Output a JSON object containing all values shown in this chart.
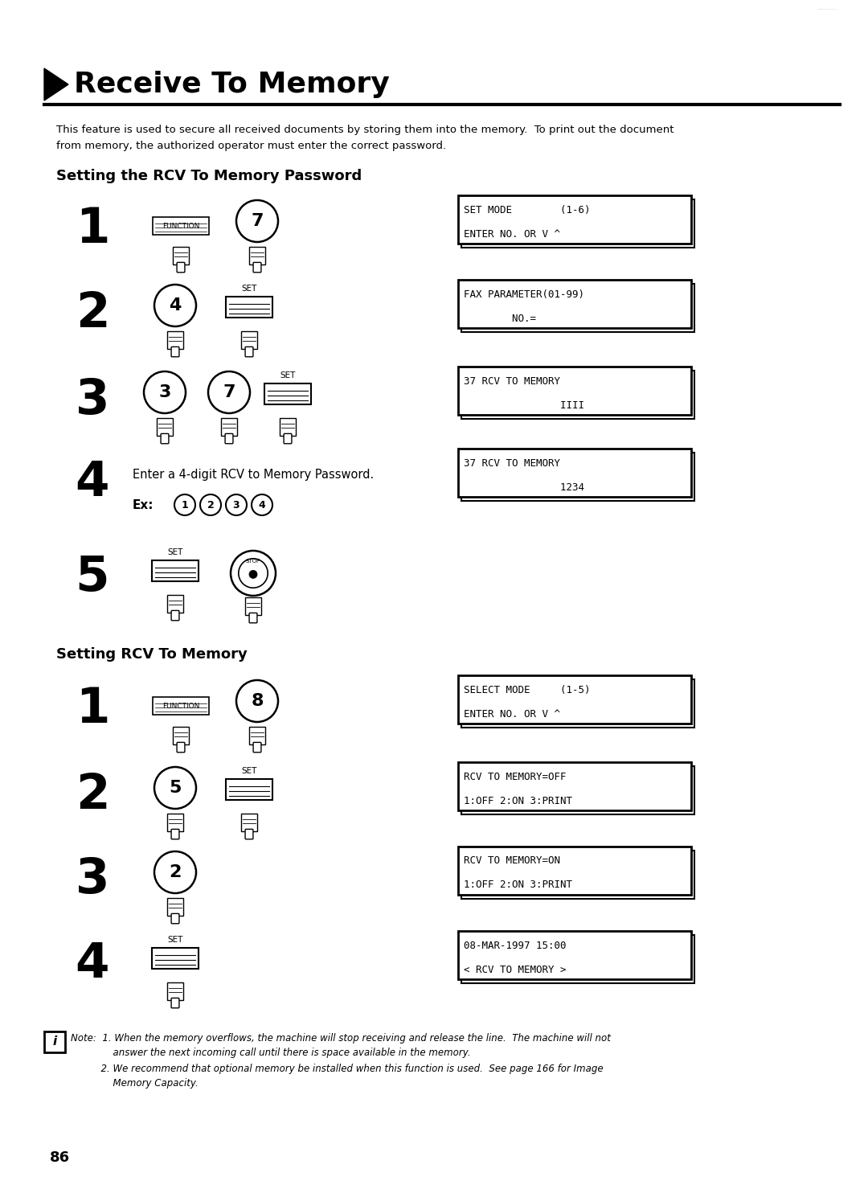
{
  "title": "Receive To Memory",
  "bg_color": "#ffffff",
  "page_number": "86",
  "intro_line1": "This feature is used to secure all received documents by storing them into the memory.  To print out the document",
  "intro_line2": "from memory, the authorized operator must enter the correct password.",
  "section1_title": "Setting the RCV To Memory Password",
  "section2_title": "Setting RCV To Memory",
  "note_line1": "Note:  1. When the memory overflows, the machine will stop receiving and release the line.  The machine will not",
  "note_line2": "              answer the next incoming call until there is space available in the memory.",
  "note_line3": "          2. We recommend that optional memory be installed when this function is used.  See page 166 for Image",
  "note_line4": "              Memory Capacity.",
  "lcd1_l1": "SET MODE        (1-6)",
  "lcd1_l2": "ENTER NO. OR V ^",
  "lcd2_l1": "FAX PARAMETER(01-99)",
  "lcd2_l2": "        NO.=",
  "lcd3_l1": "37 RCV TO MEMORY",
  "lcd3_l2": "                IIII",
  "lcd4_l1": "37 RCV TO MEMORY",
  "lcd4_l2": "                1234",
  "lcd5_l1": "SELECT MODE     (1-5)",
  "lcd5_l2": "ENTER NO. OR V ^",
  "lcd6_l1": "RCV TO MEMORY=OFF",
  "lcd6_l2": "1:OFF 2:ON 3:PRINT",
  "lcd7_l1": "RCV TO MEMORY=ON",
  "lcd7_l2": "1:OFF 2:ON 3:PRINT",
  "lcd8_l1": "08-MAR-1997 15:00",
  "lcd8_l2": "< RCV TO MEMORY >"
}
